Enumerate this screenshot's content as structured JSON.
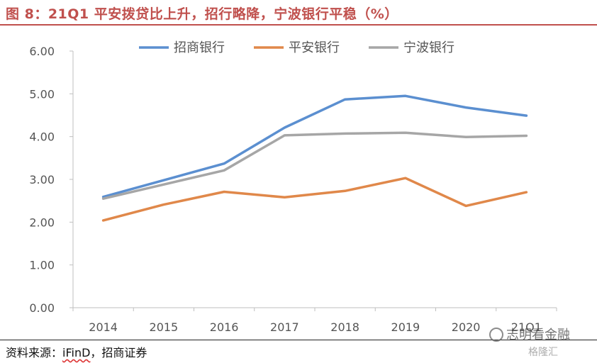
{
  "title": "图 8：21Q1 平安拨贷比上升，招行略降，宁波银行平稳（%）",
  "source": "资料来源：iFinD，招商证券",
  "source_prefix": "资料来源：",
  "source_ifind": "iFinD",
  "source_suffix": "，招商证券",
  "watermark": "志明看金融",
  "watermark2": "格隆汇",
  "chart_data": {
    "type": "line",
    "categories": [
      "2014",
      "2015",
      "2016",
      "2017",
      "2018",
      "2019",
      "2020",
      "21Q1"
    ],
    "ylim": [
      0,
      6
    ],
    "yticks": [
      "0.00",
      "1.00",
      "2.00",
      "3.00",
      "4.00",
      "5.00",
      "6.00"
    ],
    "grid": false,
    "legend_position": "top",
    "series": [
      {
        "name": "招商银行",
        "color": "#5b8fd0",
        "values": [
          2.59,
          null,
          3.37,
          4.21,
          4.87,
          4.95,
          4.68,
          4.49
        ]
      },
      {
        "name": "平安银行",
        "color": "#e0884a",
        "values": [
          2.04,
          2.41,
          2.71,
          2.58,
          2.73,
          3.03,
          2.38,
          2.7
        ]
      },
      {
        "name": "宁波银行",
        "color": "#a6a6a6",
        "values": [
          2.55,
          null,
          3.21,
          4.03,
          4.07,
          4.09,
          3.99,
          4.02
        ]
      }
    ]
  }
}
